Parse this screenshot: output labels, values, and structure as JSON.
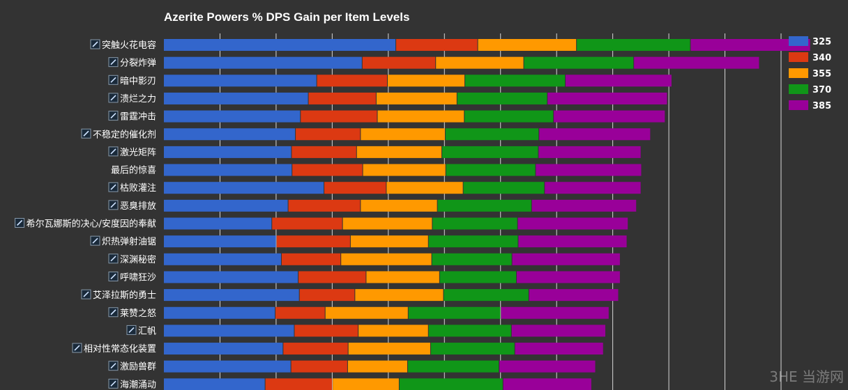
{
  "chart_data": {
    "type": "bar",
    "orientation": "horizontal",
    "stacked": true,
    "title": "Azerite Powers % DPS Gain per Item Levels",
    "xlabel": "",
    "ylabel": "",
    "xlim": [
      0,
      11
    ],
    "grid": true,
    "legend_position": "right",
    "categories": [
      "突触火花电容",
      "分裂炸弹",
      "暗中影刃",
      "溃烂之力",
      "雷霆冲击",
      "不稳定的催化剂",
      "激光矩阵",
      "最后的惊喜",
      "枯败灌注",
      "恶臭排放",
      "希尔瓦娜斯的决心/安度因的奉献",
      "炽热弹射油锯",
      "深渊秘密",
      "呼啸狂沙",
      "艾泽拉斯的勇士",
      "莱赞之怒",
      "汇帆",
      "相对性常态化装置",
      "激励兽群",
      "海潮涌动"
    ],
    "category_has_icon": [
      true,
      true,
      true,
      true,
      true,
      true,
      true,
      false,
      true,
      true,
      true,
      true,
      true,
      true,
      true,
      true,
      true,
      true,
      true,
      true
    ],
    "series": [
      {
        "name": "325",
        "color": "#3366cc",
        "values": [
          4.14,
          3.54,
          2.73,
          2.58,
          2.44,
          2.35,
          2.28,
          2.29,
          2.86,
          2.22,
          1.93,
          2.01,
          2.1,
          2.4,
          2.42,
          1.99,
          2.33,
          2.13,
          2.27,
          1.81
        ]
      },
      {
        "name": "340",
        "color": "#dc3912",
        "values": [
          1.46,
          1.31,
          1.26,
          1.21,
          1.37,
          1.16,
          1.16,
          1.26,
          1.11,
          1.29,
          1.26,
          1.32,
          1.06,
          1.21,
          0.99,
          0.89,
          1.14,
          1.16,
          1.01,
          1.2
        ]
      },
      {
        "name": "355",
        "color": "#ff9900",
        "values": [
          1.76,
          1.57,
          1.38,
          1.44,
          1.55,
          1.51,
          1.52,
          1.48,
          1.37,
          1.37,
          1.6,
          1.39,
          1.62,
          1.31,
          1.58,
          1.48,
          1.25,
          1.47,
          1.07,
          1.19
        ]
      },
      {
        "name": "370",
        "color": "#109618",
        "values": [
          2.03,
          1.96,
          1.79,
          1.61,
          1.59,
          1.67,
          1.72,
          1.6,
          1.45,
          1.68,
          1.52,
          1.6,
          1.43,
          1.37,
          1.52,
          1.65,
          1.48,
          1.5,
          1.63,
          1.85
        ]
      },
      {
        "name": "385",
        "color": "#990099",
        "values": [
          2.14,
          2.24,
          1.9,
          2.14,
          1.99,
          1.99,
          1.83,
          1.89,
          1.72,
          1.87,
          1.97,
          1.94,
          1.93,
          1.85,
          1.6,
          1.93,
          1.68,
          1.58,
          1.72,
          1.58
        ]
      }
    ]
  },
  "watermark": "3HE 当游网"
}
